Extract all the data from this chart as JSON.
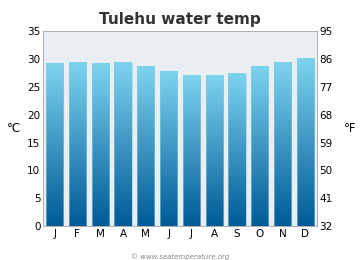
{
  "title": "Tulehu water temp",
  "months": [
    "J",
    "F",
    "M",
    "A",
    "M",
    "J",
    "J",
    "A",
    "S",
    "O",
    "N",
    "D"
  ],
  "values_c": [
    29.2,
    29.3,
    29.2,
    29.3,
    28.7,
    27.7,
    27.0,
    27.0,
    27.4,
    28.7,
    29.3,
    30.0
  ],
  "ylim_c": [
    0,
    35
  ],
  "yticks_c": [
    0,
    5,
    10,
    15,
    20,
    25,
    30,
    35
  ],
  "yticks_f": [
    32,
    41,
    50,
    59,
    68,
    77,
    86,
    95
  ],
  "ylabel_left": "°C",
  "ylabel_right": "°F",
  "bar_color_top": "#7dd4f0",
  "bar_color_bottom": "#005a96",
  "fig_bg_color": "#ffffff",
  "plot_bg_color": "#e8eef2",
  "watermark": "© www.seatemperature.org",
  "title_fontsize": 11,
  "axis_fontsize": 7.5,
  "label_fontsize": 8.5,
  "bar_width": 0.75
}
